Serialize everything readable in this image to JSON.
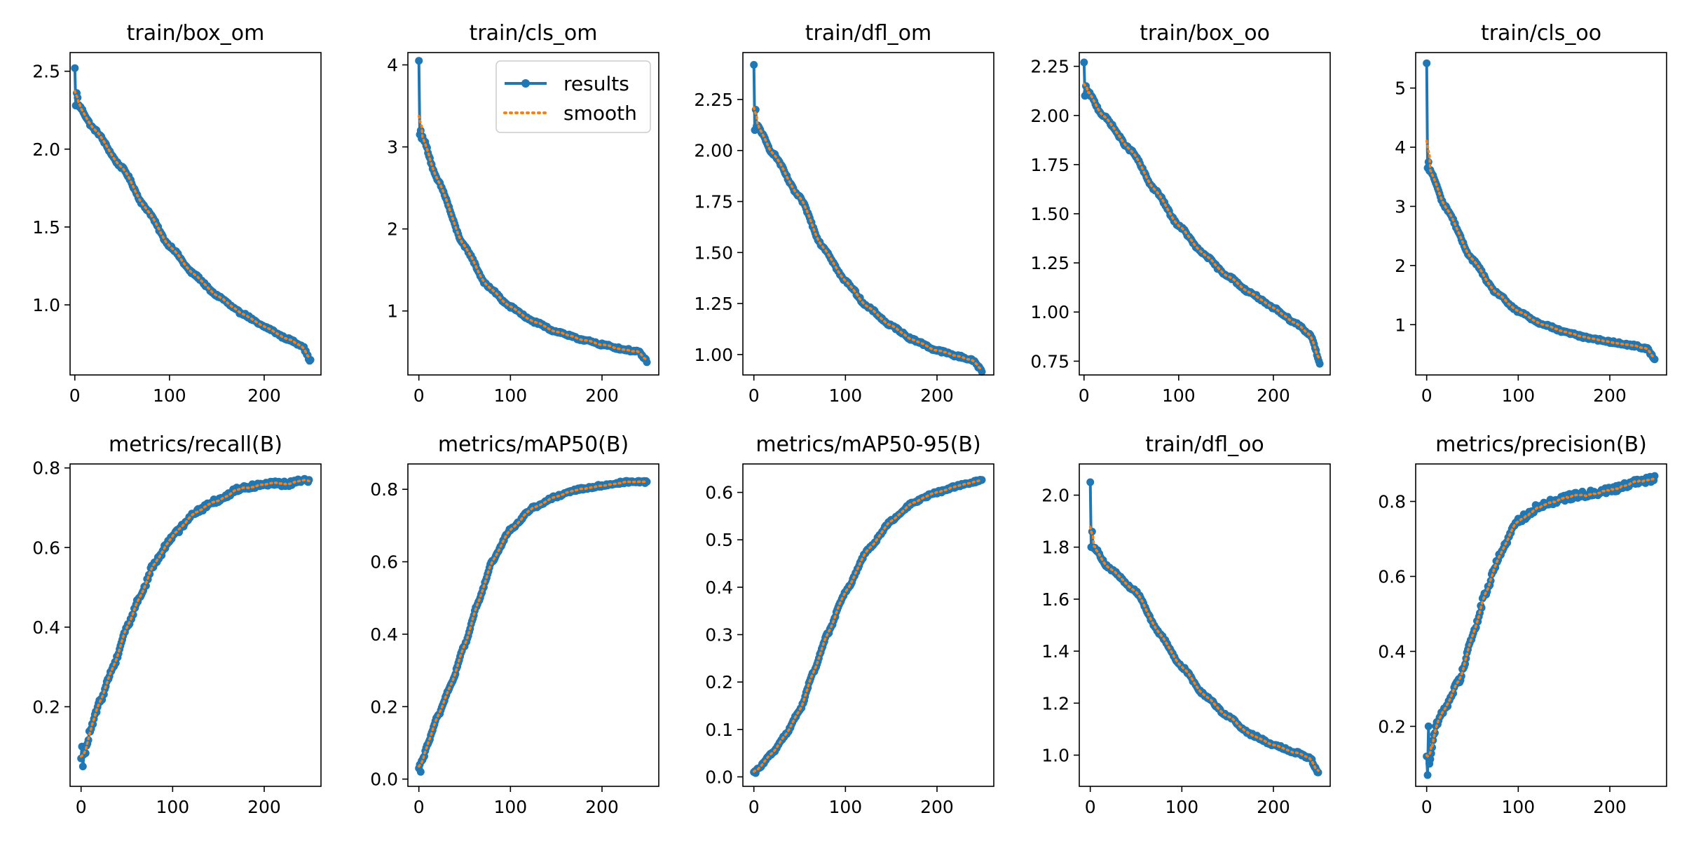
{
  "colors": {
    "results": "#1f77b4",
    "smooth": "#ff7f0e",
    "axis": "#000000",
    "background": "#ffffff"
  },
  "legend": {
    "results_label": "results",
    "smooth_label": "smooth"
  },
  "chart_data": [
    {
      "type": "line",
      "title": "train/box_om",
      "xlim": [
        -5,
        260
      ],
      "ylim": [
        0.55,
        2.62
      ],
      "xticks": [
        0,
        100,
        200
      ],
      "yticks": [
        1.0,
        1.5,
        2.0,
        2.5
      ],
      "ytick_labels": [
        "1.0",
        "1.5",
        "2.0",
        "2.5"
      ],
      "legend": false,
      "epochs": 250,
      "start": [
        2.52,
        2.28,
        2.36,
        2.33
      ],
      "anchors": [
        [
          4,
          2.28
        ],
        [
          20,
          2.13
        ],
        [
          50,
          1.88
        ],
        [
          75,
          1.62
        ],
        [
          100,
          1.38
        ],
        [
          125,
          1.2
        ],
        [
          150,
          1.06
        ],
        [
          175,
          0.95
        ],
        [
          200,
          0.86
        ],
        [
          225,
          0.78
        ],
        [
          240,
          0.74
        ],
        [
          249,
          0.64
        ]
      ]
    },
    {
      "type": "line",
      "title": "train/cls_om",
      "xlim": [
        -12,
        262
      ],
      "ylim": [
        0.22,
        4.15
      ],
      "xticks": [
        0,
        100,
        200
      ],
      "yticks": [
        1,
        2,
        3,
        4
      ],
      "ytick_labels": [
        "1",
        "2",
        "3",
        "4"
      ],
      "legend": true,
      "epochs": 250,
      "start": [
        4.05,
        3.15,
        3.2,
        3.1
      ],
      "anchors": [
        [
          4,
          3.12
        ],
        [
          20,
          2.6
        ],
        [
          50,
          1.78
        ],
        [
          75,
          1.3
        ],
        [
          100,
          1.05
        ],
        [
          125,
          0.87
        ],
        [
          150,
          0.75
        ],
        [
          175,
          0.66
        ],
        [
          200,
          0.59
        ],
        [
          225,
          0.53
        ],
        [
          240,
          0.5
        ],
        [
          249,
          0.39
        ]
      ]
    },
    {
      "type": "line",
      "title": "train/dfl_om",
      "xlim": [
        -12,
        262
      ],
      "ylim": [
        0.9,
        2.48
      ],
      "xticks": [
        0,
        100,
        200
      ],
      "yticks": [
        1.0,
        1.25,
        1.5,
        1.75,
        2.0,
        2.25
      ],
      "ytick_labels": [
        "1.00",
        "1.25",
        "1.50",
        "1.75",
        "2.00",
        "2.25"
      ],
      "legend": false,
      "epochs": 250,
      "start": [
        2.42,
        2.1,
        2.2,
        2.12
      ],
      "anchors": [
        [
          4,
          2.12
        ],
        [
          20,
          1.99
        ],
        [
          50,
          1.77
        ],
        [
          75,
          1.53
        ],
        [
          100,
          1.36
        ],
        [
          125,
          1.23
        ],
        [
          150,
          1.14
        ],
        [
          175,
          1.07
        ],
        [
          200,
          1.02
        ],
        [
          225,
          0.99
        ],
        [
          240,
          0.97
        ],
        [
          249,
          0.92
        ]
      ]
    },
    {
      "type": "line",
      "title": "train/box_oo",
      "xlim": [
        -5,
        260
      ],
      "ylim": [
        0.68,
        2.32
      ],
      "xticks": [
        0,
        100,
        200
      ],
      "yticks": [
        0.75,
        1.0,
        1.25,
        1.5,
        1.75,
        2.0,
        2.25
      ],
      "ytick_labels": [
        "0.75",
        "1.00",
        "1.25",
        "1.50",
        "1.75",
        "2.00",
        "2.25"
      ],
      "legend": false,
      "epochs": 250,
      "start": [
        2.27,
        2.1,
        2.15,
        2.12
      ],
      "anchors": [
        [
          4,
          2.12
        ],
        [
          20,
          2.0
        ],
        [
          50,
          1.82
        ],
        [
          75,
          1.62
        ],
        [
          100,
          1.44
        ],
        [
          125,
          1.3
        ],
        [
          150,
          1.19
        ],
        [
          175,
          1.1
        ],
        [
          200,
          1.02
        ],
        [
          225,
          0.94
        ],
        [
          240,
          0.88
        ],
        [
          249,
          0.74
        ]
      ]
    },
    {
      "type": "line",
      "title": "train/cls_oo",
      "xlim": [
        -12,
        262
      ],
      "ylim": [
        0.15,
        5.6
      ],
      "xticks": [
        0,
        100,
        200
      ],
      "yticks": [
        1,
        2,
        3,
        4,
        5
      ],
      "ytick_labels": [
        "1",
        "2",
        "3",
        "4",
        "5"
      ],
      "legend": false,
      "epochs": 250,
      "start": [
        5.42,
        3.65,
        3.75,
        3.6
      ],
      "anchors": [
        [
          4,
          3.6
        ],
        [
          20,
          3.0
        ],
        [
          50,
          2.1
        ],
        [
          75,
          1.55
        ],
        [
          100,
          1.22
        ],
        [
          125,
          1.02
        ],
        [
          150,
          0.88
        ],
        [
          175,
          0.78
        ],
        [
          200,
          0.71
        ],
        [
          225,
          0.65
        ],
        [
          240,
          0.6
        ],
        [
          249,
          0.42
        ]
      ]
    },
    {
      "type": "line",
      "title": "metrics/recall(B)",
      "xlim": [
        -12,
        262
      ],
      "ylim": [
        0.0,
        0.81
      ],
      "xticks": [
        0,
        100,
        200
      ],
      "yticks": [
        0.2,
        0.4,
        0.6,
        0.8
      ],
      "ytick_labels": [
        "0.2",
        "0.4",
        "0.6",
        "0.8"
      ],
      "legend": false,
      "epochs": 250,
      "start": [
        0.07,
        0.1,
        0.05,
        0.08
      ],
      "anchors": [
        [
          4,
          0.08
        ],
        [
          10,
          0.14
        ],
        [
          20,
          0.21
        ],
        [
          35,
          0.3
        ],
        [
          50,
          0.4
        ],
        [
          65,
          0.48
        ],
        [
          80,
          0.56
        ],
        [
          100,
          0.63
        ],
        [
          125,
          0.69
        ],
        [
          150,
          0.72
        ],
        [
          175,
          0.75
        ],
        [
          200,
          0.76
        ],
        [
          225,
          0.76
        ],
        [
          249,
          0.77
        ]
      ],
      "noise": 0.008
    },
    {
      "type": "line",
      "title": "metrics/mAP50(B)",
      "xlim": [
        -12,
        262
      ],
      "ylim": [
        -0.02,
        0.87
      ],
      "xticks": [
        0,
        100,
        200
      ],
      "yticks": [
        0.0,
        0.2,
        0.4,
        0.6,
        0.8
      ],
      "ytick_labels": [
        "0.0",
        "0.2",
        "0.4",
        "0.6",
        "0.8"
      ],
      "legend": false,
      "epochs": 250,
      "start": [
        0.03,
        0.04,
        0.02,
        0.05
      ],
      "anchors": [
        [
          4,
          0.05
        ],
        [
          10,
          0.1
        ],
        [
          20,
          0.17
        ],
        [
          35,
          0.26
        ],
        [
          50,
          0.37
        ],
        [
          65,
          0.49
        ],
        [
          80,
          0.6
        ],
        [
          100,
          0.69
        ],
        [
          125,
          0.75
        ],
        [
          150,
          0.78
        ],
        [
          175,
          0.8
        ],
        [
          200,
          0.81
        ],
        [
          225,
          0.82
        ],
        [
          249,
          0.82
        ]
      ]
    },
    {
      "type": "line",
      "title": "metrics/mAP50-95(B)",
      "xlim": [
        -12,
        262
      ],
      "ylim": [
        -0.02,
        0.66
      ],
      "xticks": [
        0,
        100,
        200
      ],
      "yticks": [
        0.0,
        0.1,
        0.2,
        0.3,
        0.4,
        0.5,
        0.6
      ],
      "ytick_labels": [
        "0.0",
        "0.1",
        "0.2",
        "0.3",
        "0.4",
        "0.5",
        "0.6"
      ],
      "legend": false,
      "epochs": 250,
      "start": [
        0.01,
        0.012,
        0.008,
        0.015
      ],
      "anchors": [
        [
          4,
          0.015
        ],
        [
          20,
          0.05
        ],
        [
          35,
          0.09
        ],
        [
          50,
          0.14
        ],
        [
          65,
          0.22
        ],
        [
          80,
          0.3
        ],
        [
          100,
          0.39
        ],
        [
          125,
          0.48
        ],
        [
          150,
          0.54
        ],
        [
          175,
          0.58
        ],
        [
          200,
          0.6
        ],
        [
          225,
          0.615
        ],
        [
          249,
          0.625
        ]
      ]
    },
    {
      "type": "line",
      "title": "train/dfl_oo",
      "xlim": [
        -12,
        262
      ],
      "ylim": [
        0.88,
        2.12
      ],
      "xticks": [
        0,
        100,
        200
      ],
      "yticks": [
        1.0,
        1.2,
        1.4,
        1.6,
        1.8,
        2.0
      ],
      "ytick_labels": [
        "1.0",
        "1.2",
        "1.4",
        "1.6",
        "1.8",
        "2.0"
      ],
      "legend": false,
      "epochs": 250,
      "start": [
        2.05,
        1.8,
        1.86,
        1.8
      ],
      "anchors": [
        [
          4,
          1.8
        ],
        [
          20,
          1.72
        ],
        [
          50,
          1.63
        ],
        [
          75,
          1.47
        ],
        [
          100,
          1.34
        ],
        [
          125,
          1.23
        ],
        [
          150,
          1.15
        ],
        [
          175,
          1.08
        ],
        [
          200,
          1.04
        ],
        [
          225,
          1.01
        ],
        [
          240,
          0.99
        ],
        [
          249,
          0.93
        ]
      ]
    },
    {
      "type": "line",
      "title": "metrics/precision(B)",
      "xlim": [
        -12,
        262
      ],
      "ylim": [
        0.04,
        0.9
      ],
      "xticks": [
        0,
        100,
        200
      ],
      "yticks": [
        0.2,
        0.4,
        0.6,
        0.8
      ],
      "ytick_labels": [
        "0.2",
        "0.4",
        "0.6",
        "0.8"
      ],
      "legend": false,
      "epochs": 250,
      "start": [
        0.12,
        0.07,
        0.2,
        0.1
      ],
      "anchors": [
        [
          4,
          0.12
        ],
        [
          10,
          0.2
        ],
        [
          20,
          0.25
        ],
        [
          35,
          0.32
        ],
        [
          50,
          0.44
        ],
        [
          65,
          0.56
        ],
        [
          80,
          0.66
        ],
        [
          100,
          0.75
        ],
        [
          125,
          0.79
        ],
        [
          150,
          0.81
        ],
        [
          175,
          0.82
        ],
        [
          200,
          0.83
        ],
        [
          225,
          0.85
        ],
        [
          249,
          0.86
        ]
      ],
      "noise": 0.01
    }
  ]
}
